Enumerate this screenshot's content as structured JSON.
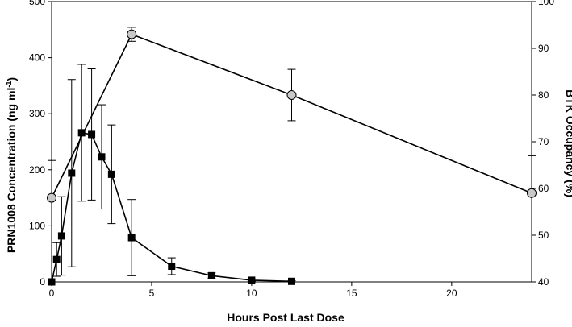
{
  "chart_data": {
    "type": "line",
    "xlabel": "Hours Post Last Dose",
    "ylabel": "PRN1008 Concentration (ng ml",
    "ylabel_superscript": "-1",
    "ylabel_close": ")",
    "y2label": "BTK Occupancy (%)",
    "xlim": [
      0,
      24
    ],
    "ylim": [
      0,
      500
    ],
    "y2lim": [
      40,
      100
    ],
    "xticks": [
      "0",
      "5",
      "10",
      "15",
      "20"
    ],
    "yticks": [
      "0",
      "100",
      "200",
      "300",
      "400",
      "500"
    ],
    "y2ticks": [
      "40",
      "50",
      "60",
      "70",
      "80",
      "90",
      "100"
    ],
    "grid": false,
    "series": [
      {
        "axis": "left",
        "marker": "square",
        "color": "#000000",
        "x": [
          0,
          0.25,
          0.5,
          1,
          1.5,
          2,
          2.5,
          3,
          4,
          6,
          8,
          10,
          12
        ],
        "y": [
          0,
          40,
          82,
          194,
          266,
          263,
          223,
          192,
          79,
          28,
          11,
          3,
          1
        ],
        "err_low": [
          0,
          30,
          70,
          167,
          122,
          117,
          93,
          88,
          68,
          15,
          5,
          2,
          1
        ],
        "err_high": [
          0,
          30,
          70,
          167,
          122,
          117,
          93,
          88,
          68,
          15,
          5,
          2,
          1
        ]
      },
      {
        "axis": "right",
        "marker": "circle",
        "color": "#c8c8c8",
        "x": [
          0,
          4,
          12,
          24
        ],
        "y": [
          58,
          93,
          80,
          59
        ],
        "err_low": [
          0,
          1.5,
          5.5,
          0
        ],
        "err_high": [
          0,
          1.5,
          5.5,
          0
        ]
      }
    ],
    "extra_error_bars": [
      {
        "x": 0,
        "y": 58,
        "high": 8,
        "axis": "right"
      },
      {
        "x": 24,
        "y": 59,
        "high": 8,
        "axis": "right"
      }
    ]
  }
}
